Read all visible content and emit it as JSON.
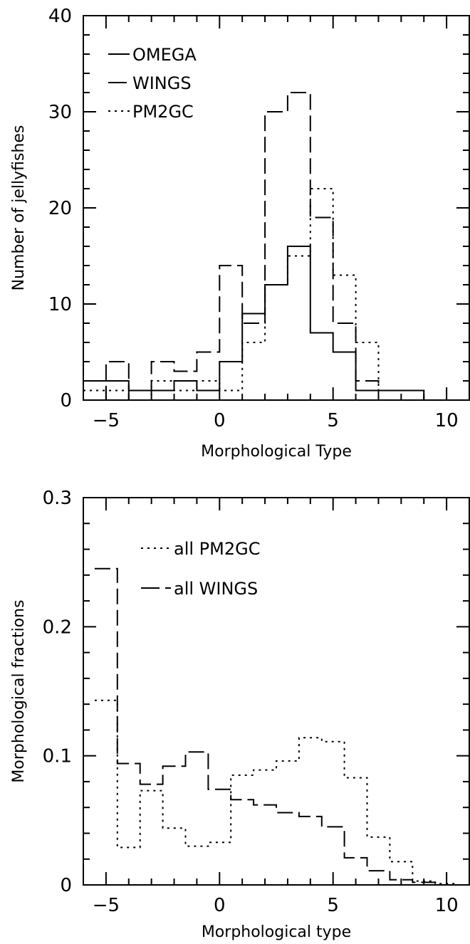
{
  "chart_data": [
    {
      "type": "histogram",
      "xlabel": "Morphological Type",
      "ylabel": "Number of jellyfishes",
      "xlim": [
        -6,
        11
      ],
      "ylim": [
        0,
        40
      ],
      "x_ticks": [
        -5,
        0,
        5,
        10
      ],
      "y_ticks": [
        0,
        10,
        20,
        30,
        40
      ],
      "grid": false,
      "legend_position": "top-left",
      "bins": [
        -6,
        -5,
        -4,
        -3,
        -2,
        -1,
        0,
        1,
        2,
        3,
        4,
        5,
        6,
        7,
        8,
        9
      ],
      "series": [
        {
          "name": "OMEGA",
          "linestyle": "solid",
          "values": [
            2,
            2,
            1,
            1,
            2,
            1,
            4,
            9,
            12,
            16,
            7,
            5,
            1,
            1,
            1,
            0
          ]
        },
        {
          "name": "WINGS",
          "linestyle": "dashed",
          "values": [
            0,
            4,
            0,
            4,
            3,
            5,
            14,
            8,
            30,
            32,
            19,
            8,
            2,
            0,
            0,
            0
          ]
        },
        {
          "name": "PM2GC",
          "linestyle": "dotted",
          "values": [
            1,
            1,
            1,
            2,
            1,
            2,
            1,
            6,
            12,
            15,
            22,
            13,
            6,
            1,
            1,
            0
          ]
        }
      ]
    },
    {
      "type": "histogram",
      "xlabel": "Morphological type",
      "ylabel": "Morphological fractions",
      "xlim": [
        -6,
        11
      ],
      "ylim": [
        0,
        0.3
      ],
      "x_ticks": [
        -5,
        0,
        5,
        10
      ],
      "y_ticks": [
        0,
        0.1,
        0.2,
        0.3
      ],
      "grid": false,
      "legend_position": "top-left",
      "bins": [
        -5.5,
        -4.5,
        -3.5,
        -2.5,
        -1.5,
        -0.5,
        0.5,
        1.5,
        2.5,
        3.5,
        4.5,
        5.5,
        6.5,
        7.5,
        8.5,
        9.5
      ],
      "series": [
        {
          "name": "all PM2GC",
          "linestyle": "dotted",
          "values": [
            0.143,
            0.029,
            0.073,
            0.044,
            0.03,
            0.033,
            0.085,
            0.089,
            0.096,
            0.114,
            0.111,
            0.083,
            0.037,
            0.018,
            0.003,
            0.001
          ]
        },
        {
          "name": "all WINGS",
          "linestyle": "dashed",
          "values": [
            0.245,
            0.094,
            0.078,
            0.092,
            0.103,
            0.074,
            0.066,
            0.062,
            0.056,
            0.053,
            0.045,
            0.021,
            0.011,
            0.004,
            0.002,
            0.0
          ]
        }
      ]
    }
  ]
}
